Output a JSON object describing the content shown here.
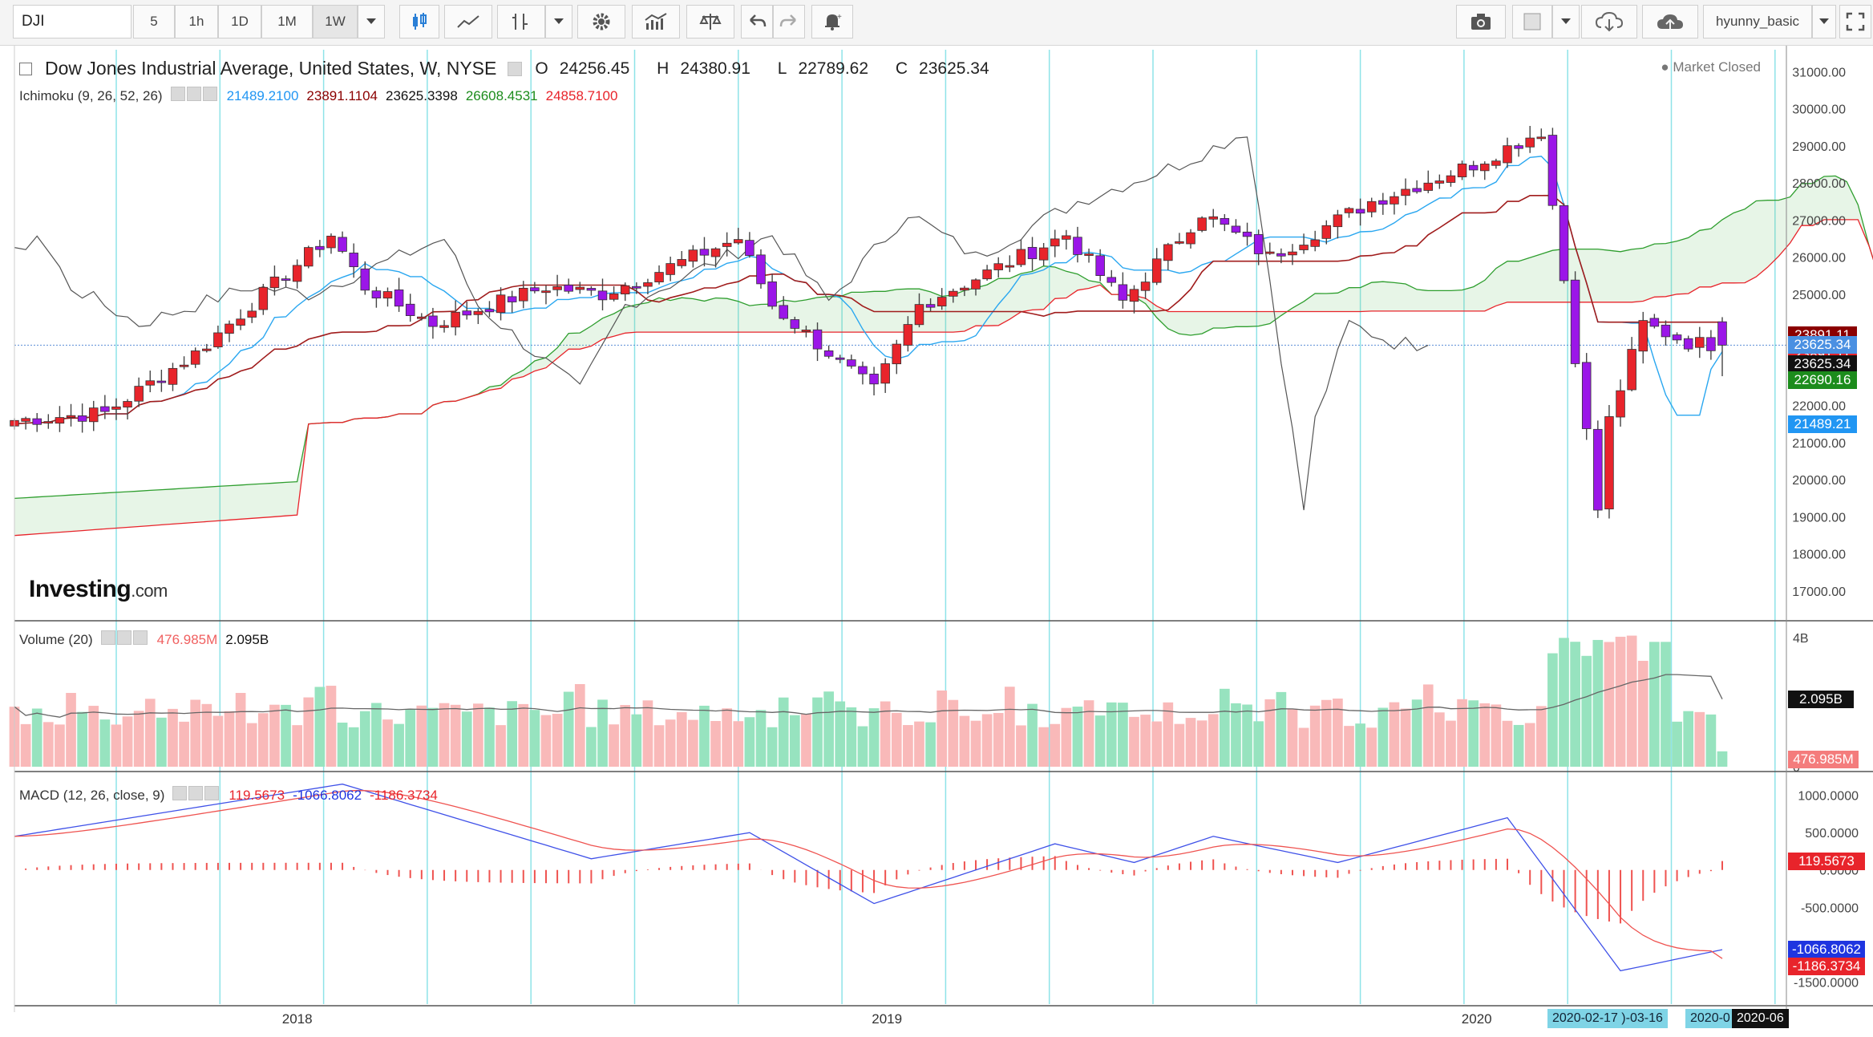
{
  "toolbar": {
    "symbol": "DJI",
    "intervals": [
      "5",
      "1h",
      "1D",
      "1M",
      "1W"
    ],
    "active_interval": "1W",
    "user": "hyunny_basic",
    "icons": [
      "candles-icon",
      "line-chart-icon",
      "indicator-icon",
      "dropdown-icon",
      "settings-icon",
      "studies-icon",
      "compare-icon",
      "undo-icon",
      "redo-icon",
      "alert-icon",
      "camera-icon",
      "color-box-icon",
      "cloud-download-icon",
      "cloud-upload-icon",
      "fullscreen-icon"
    ]
  },
  "header": {
    "title": "Dow Jones Industrial Average, United States, W, NYSE",
    "o_label": "O",
    "o_value": "24256.45",
    "h_label": "H",
    "h_value": "24380.91",
    "l_label": "L",
    "l_value": "22789.62",
    "c_label": "C",
    "c_value": "23625.34",
    "market_status": "Market Closed",
    "brand": "Investing",
    "brand_suffix": ".com"
  },
  "ichimoku_legend": {
    "name": "Ichimoku (9, 26, 52, 26)",
    "v1": "21489.2100",
    "v2": "23891.1104",
    "v3": "23625.3398",
    "v4": "26608.4531",
    "v5": "24858.7100"
  },
  "volume_legend": {
    "name": "Volume (20)",
    "v1": "476.985M",
    "v2": "2.095B"
  },
  "macd_legend": {
    "name": "MACD (12, 26, close, 9)",
    "v1": "119.5673",
    "v2": "-1066.8062",
    "v3": "-1186.3734"
  },
  "price_tags": [
    {
      "text": "23891.11",
      "color": "#8b0000"
    },
    {
      "text": "23891.11",
      "color": "#e8242b"
    },
    {
      "text": "23625.34",
      "color": "#4a90e2"
    },
    {
      "text": "23625.34",
      "color": "#111111"
    },
    {
      "text": "22690.16",
      "color": "#1c8c1c"
    },
    {
      "text": "21489.21",
      "color": "#2196f3"
    }
  ],
  "volume_tags": [
    {
      "text": "2.095B",
      "color": "#111111"
    },
    {
      "text": "476.985M",
      "color": "#f47c7c"
    }
  ],
  "macd_tags": [
    {
      "text": "119.5673",
      "color": "#e8242b"
    },
    {
      "text": "-1066.8062",
      "color": "#1f35e0"
    },
    {
      "text": "-1186.3734",
      "color": "#e8242b"
    }
  ],
  "x_axis": {
    "labels": [
      "2018",
      "2019",
      "2020"
    ],
    "range_tag": "2020-02-17 )-03-16",
    "tag2": "2020-0",
    "tag3": "2020-06"
  },
  "chart_data": [
    {
      "type": "candlestick",
      "title": "Dow Jones Industrial Average, United States, W, NYSE",
      "y_ticks": [
        17000,
        18000,
        19000,
        20000,
        21000,
        22000,
        23000,
        24000,
        25000,
        26000,
        27000,
        28000,
        29000,
        30000,
        31000
      ],
      "y_tick_labels": [
        "17000.00",
        "18000.00",
        "19000.00",
        "20000.00",
        "21000.00",
        "22000.00",
        "23000.00",
        "24000.00",
        "25000.00",
        "26000.00",
        "27000.00",
        "28000.00",
        "29000.00",
        "30000.00",
        "31000.00"
      ],
      "ylim": [
        16500,
        31200
      ],
      "x_range": [
        "2017-07",
        "2020-06"
      ],
      "close_anchors": [
        {
          "date": "2017-07-10",
          "close": 21600
        },
        {
          "date": "2017-09-04",
          "close": 21800
        },
        {
          "date": "2017-10-30",
          "close": 23400
        },
        {
          "date": "2018-01-22",
          "close": 26600
        },
        {
          "date": "2018-02-12",
          "close": 25200
        },
        {
          "date": "2018-03-26",
          "close": 24200
        },
        {
          "date": "2018-06-04",
          "close": 25200
        },
        {
          "date": "2018-07-09",
          "close": 25000
        },
        {
          "date": "2018-10-01",
          "close": 26500
        },
        {
          "date": "2018-10-22",
          "close": 24700
        },
        {
          "date": "2018-12-24",
          "close": 22400
        },
        {
          "date": "2019-01-21",
          "close": 24700
        },
        {
          "date": "2019-04-22",
          "close": 26600
        },
        {
          "date": "2019-05-27",
          "close": 24800
        },
        {
          "date": "2019-07-15",
          "close": 27200
        },
        {
          "date": "2019-08-26",
          "close": 26000
        },
        {
          "date": "2019-10-28",
          "close": 27500
        },
        {
          "date": "2019-12-30",
          "close": 28500
        },
        {
          "date": "2020-02-10",
          "close": 29400
        },
        {
          "date": "2020-02-24",
          "close": 25400
        },
        {
          "date": "2020-03-16",
          "close": 19200
        },
        {
          "date": "2020-03-23",
          "close": 21600
        },
        {
          "date": "2020-04-13",
          "close": 24200
        },
        {
          "date": "2020-05-11",
          "close": 23700
        },
        {
          "date": "2020-06-01",
          "close": 23625.34
        }
      ],
      "last_candle": {
        "open": 24256.45,
        "high": 24380.91,
        "low": 22789.62,
        "close": 23625.34
      },
      "ichimoku": {
        "tenkan": 21489.21,
        "kijun": 23891.11,
        "chikou": 23625.34,
        "senkou_a": 26608.45,
        "senkou_b": 24858.71
      }
    },
    {
      "type": "bar",
      "title": "Volume (20)",
      "y_tick_labels": [
        "4B",
        "0"
      ],
      "ylim": [
        0,
        4200000000
      ],
      "values_summary": {
        "last_volume": 476985000,
        "ma20": 2095000000
      }
    },
    {
      "type": "line",
      "title": "MACD (12, 26, close, 9)",
      "y_tick_labels": [
        "1000.0000",
        "500.0000",
        "0.0000",
        "-500.0000",
        "-1000.0000",
        "-1500.0000"
      ],
      "ylim": [
        -1560,
        1200
      ],
      "macd_anchors": [
        {
          "date": "2017-07-10",
          "macd": 450
        },
        {
          "date": "2018-01-29",
          "macd": 1150
        },
        {
          "date": "2018-07-02",
          "macd": 150
        },
        {
          "date": "2018-10-08",
          "macd": 500
        },
        {
          "date": "2018-12-24",
          "macd": -450
        },
        {
          "date": "2019-04-15",
          "macd": 350
        },
        {
          "date": "2019-06-03",
          "macd": 100
        },
        {
          "date": "2019-07-22",
          "macd": 450
        },
        {
          "date": "2019-10-07",
          "macd": 100
        },
        {
          "date": "2020-01-20",
          "macd": 700
        },
        {
          "date": "2020-03-30",
          "macd": -1350
        },
        {
          "date": "2020-06-01",
          "macd": -1066.8062
        }
      ],
      "signal_last": -1186.3734,
      "histogram_last": 119.5673
    }
  ]
}
